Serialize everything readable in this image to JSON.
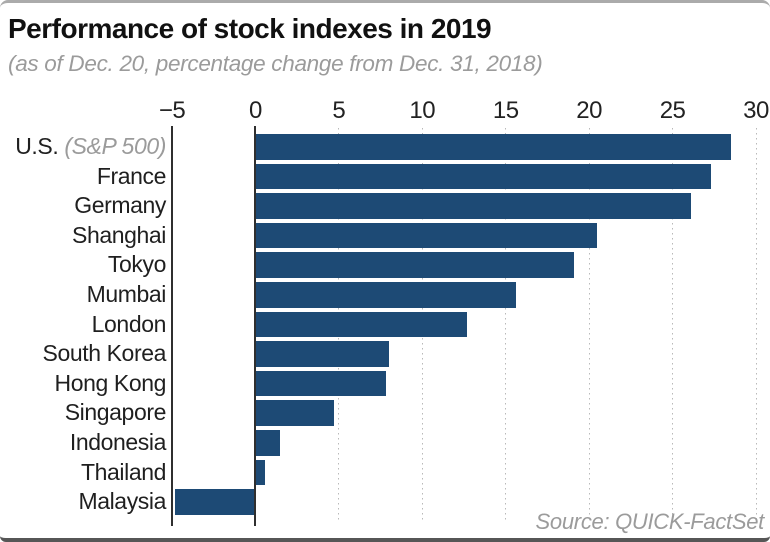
{
  "header": {
    "title": "Performance of stock indexes in 2019",
    "subtitle": "(as of Dec. 20, percentage change from Dec. 31, 2018)"
  },
  "footer": {
    "source": "Source: QUICK-FactSet"
  },
  "colors": {
    "bar": "#1d4a75",
    "title_text": "#111111",
    "category_text": "#1f1f1f",
    "muted_text": "#9b9b9b",
    "grid_dotted": "#b9b9b9",
    "axis_line": "#2f2f2f",
    "top_border": "#ababab",
    "bottom_border": "#565656"
  },
  "chart_data": {
    "type": "bar",
    "orientation": "horizontal",
    "title": "Performance of stock indexes in 2019",
    "subtitle": "(as of Dec. 20, percentage change from Dec. 31, 2018)",
    "xlabel": "percentage change from Dec. 31, 2018",
    "ylabel": "",
    "xlim": [
      -5,
      30
    ],
    "grid": "vertical, dotted at positive ticks, solid lines at -5 and 0",
    "legend": "none",
    "bar_color": "#1d4a75",
    "x_ticks": [
      {
        "value": -5,
        "label": "−5",
        "line": "solid"
      },
      {
        "value": 0,
        "label": "0",
        "line": "solid"
      },
      {
        "value": 5,
        "label": "5",
        "line": "dotted"
      },
      {
        "value": 10,
        "label": "10",
        "line": "dotted"
      },
      {
        "value": 15,
        "label": "15",
        "line": "dotted"
      },
      {
        "value": 20,
        "label": "20",
        "line": "dotted"
      },
      {
        "value": 25,
        "label": "25",
        "line": "dotted"
      },
      {
        "value": 30,
        "label": "30",
        "line": "dotted"
      }
    ],
    "rows": [
      {
        "label": "U.S.",
        "note": "(S&P 500)",
        "value": 28.5
      },
      {
        "label": "France",
        "value": 27.3
      },
      {
        "label": "Germany",
        "value": 26.1
      },
      {
        "label": "Shanghai",
        "value": 20.5
      },
      {
        "label": "Tokyo",
        "value": 19.1
      },
      {
        "label": "Mumbai",
        "value": 15.6
      },
      {
        "label": "London",
        "value": 12.7
      },
      {
        "label": "South Korea",
        "value": 8.0
      },
      {
        "label": "Hong Kong",
        "value": 7.8
      },
      {
        "label": "Singapore",
        "value": 4.7
      },
      {
        "label": "Indonesia",
        "value": 1.5
      },
      {
        "label": "Thailand",
        "value": 0.6
      },
      {
        "label": "Malaysia",
        "value": -4.8
      }
    ],
    "source": "Source: QUICK-FactSet"
  }
}
